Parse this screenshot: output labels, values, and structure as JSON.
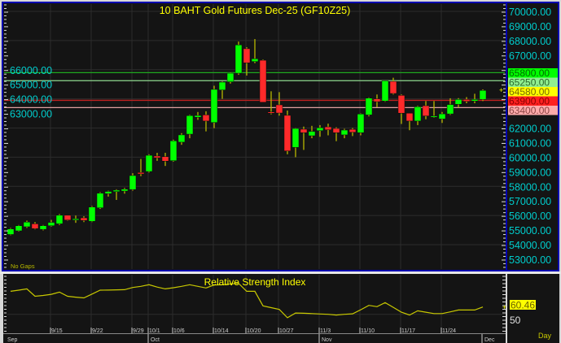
{
  "chart_data": {
    "type": "candlestick",
    "title": "10  BAHT  Gold  Futures  Dec-25  (GF10Z25)",
    "note": "No  Gaps",
    "period": "Day",
    "ylim": [
      52500,
      70500
    ],
    "y_ticks": [
      "70000.00",
      "69000.00",
      "68000.00",
      "67000.00",
      "66000.00",
      "65000.00",
      "64000.00",
      "63000.00",
      "62000.00",
      "61000.00",
      "60000.00",
      "59000.00",
      "58000.00",
      "57000.00",
      "56000.00",
      "55000.00",
      "54000.00",
      "53000.00"
    ],
    "y_tick_values": [
      70000,
      69000,
      68000,
      67000,
      66000,
      65000,
      64000,
      63000,
      62000,
      61000,
      60000,
      59000,
      58000,
      57000,
      56000,
      55000,
      54000,
      53000
    ],
    "grid_every": 2000,
    "levels": [
      {
        "value": 65800,
        "label": "65800.00",
        "line": "#1fa81f",
        "bg": "#00ff00",
        "fg": "#006a00"
      },
      {
        "value": 65250,
        "label": "65250.00",
        "line": "#8fd88f",
        "bg": "#90ee90",
        "fg": "#2d6b2d"
      },
      {
        "value": 63900,
        "label": "63900.00",
        "line": "#c02020",
        "bg": "#ff2020",
        "fg": "#8a0000"
      },
      {
        "value": 63400,
        "label": "63400.00",
        "line": "#e0a0a0",
        "bg": "#ffaaaa",
        "fg": "#8a4545"
      }
    ],
    "last_price": {
      "value": 64580,
      "label": "64580.00",
      "bg": "#ffff00",
      "fg": "#7a6a00"
    },
    "colors": {
      "up": "#00ff00",
      "down": "#ff2a2a",
      "wick": "#b8b800",
      "title": "#ffff00",
      "axis_text": "#00cccc",
      "background": "#141414",
      "grid": "#2c2c2c",
      "frame": "#0000b0"
    },
    "candles": [
      [
        54700,
        55150,
        54650,
        55080
      ],
      [
        54950,
        55350,
        54900,
        55300
      ],
      [
        55230,
        55650,
        55150,
        55550
      ],
      [
        55430,
        55550,
        55050,
        55100
      ],
      [
        55050,
        55350,
        54980,
        55300
      ],
      [
        55300,
        55700,
        55250,
        55530
      ],
      [
        55430,
        56100,
        55350,
        56020
      ],
      [
        56020,
        56020,
        55650,
        55690
      ],
      [
        55690,
        56000,
        55500,
        55780
      ],
      [
        55840,
        55950,
        55550,
        55660
      ],
      [
        55600,
        56650,
        55550,
        56580
      ],
      [
        56530,
        57600,
        56450,
        57530
      ],
      [
        57500,
        57700,
        57300,
        57650
      ],
      [
        57640,
        57800,
        57070,
        57740
      ],
      [
        57680,
        57900,
        57500,
        57810
      ],
      [
        57780,
        58900,
        57700,
        58740
      ],
      [
        58950,
        59880,
        58700,
        58850
      ],
      [
        59020,
        60200,
        58950,
        60130
      ],
      [
        60080,
        60300,
        59750,
        59960
      ],
      [
        60040,
        60300,
        59400,
        59730
      ],
      [
        59760,
        61200,
        59700,
        61120
      ],
      [
        61030,
        61650,
        60850,
        61530
      ],
      [
        61580,
        62900,
        61300,
        62850
      ],
      [
        62740,
        63100,
        62560,
        62860
      ],
      [
        62900,
        63150,
        61770,
        62480
      ],
      [
        62380,
        64900,
        61990,
        64650
      ],
      [
        64610,
        65200,
        64000,
        65150
      ],
      [
        65170,
        65800,
        65050,
        65760
      ],
      [
        65760,
        67930,
        65650,
        67700
      ],
      [
        67440,
        67540,
        65600,
        66470
      ],
      [
        66560,
        68100,
        66450,
        66750
      ],
      [
        66650,
        66700,
        63770,
        63770
      ],
      [
        63100,
        64520,
        62940,
        63050
      ],
      [
        63590,
        64460,
        62850,
        63030
      ],
      [
        62870,
        63200,
        60200,
        60430
      ],
      [
        60670,
        62000,
        60000,
        61970
      ],
      [
        61920,
        62100,
        60500,
        61680
      ],
      [
        61470,
        62150,
        61300,
        61770
      ],
      [
        61820,
        62200,
        61400,
        62020
      ],
      [
        62080,
        62300,
        61500,
        61880
      ],
      [
        61970,
        62050,
        61100,
        61680
      ],
      [
        61530,
        61950,
        61300,
        61860
      ],
      [
        61910,
        62000,
        61450,
        61710
      ],
      [
        61680,
        63000,
        61500,
        62960
      ],
      [
        62900,
        64100,
        62800,
        64050
      ],
      [
        64000,
        64300,
        63420,
        63810
      ],
      [
        63850,
        65250,
        63800,
        65240
      ],
      [
        65200,
        65450,
        64300,
        64370
      ],
      [
        64240,
        64300,
        62280,
        63020
      ],
      [
        63020,
        63030,
        61850,
        62480
      ],
      [
        62480,
        63520,
        62200,
        63460
      ],
      [
        63530,
        63850,
        62600,
        62830
      ],
      [
        62780,
        63850,
        62700,
        62830
      ],
      [
        62620,
        63100,
        62350,
        62970
      ],
      [
        62970,
        64040,
        62900,
        63610
      ],
      [
        63630,
        64050,
        63400,
        63960
      ],
      [
        63960,
        64120,
        63700,
        63830
      ],
      [
        63850,
        64350,
        63700,
        63960
      ],
      [
        63960,
        64650,
        63850,
        64580
      ]
    ],
    "rsi": {
      "title": "Relative  Strength  Index",
      "value_label": "60.46",
      "ref_label": "50",
      "line_color": "#c8c800",
      "values": [
        82.9,
        84.5,
        86.4,
        75.8,
        77,
        78.6,
        81.7,
        75.8,
        74.5,
        73.5,
        79,
        84.5,
        84.7,
        85,
        85.2,
        88.4,
        90,
        92.3,
        89,
        86.4,
        88,
        90,
        92.3,
        90,
        87.7,
        92,
        92.3,
        93.5,
        94.3,
        82.9,
        82.9,
        62.1,
        59.5,
        57,
        45.1,
        51.9,
        51.5,
        51,
        50.5,
        50,
        49,
        50,
        50.7,
        56.5,
        62.8,
        60.9,
        66.7,
        60,
        53,
        49,
        55,
        53,
        51,
        51,
        53.5,
        56.2,
        56.2,
        56.2,
        60.46
      ]
    },
    "x_axis": {
      "day_labels": [
        {
          "label": "9/15",
          "index": 5
        },
        {
          "label": "9/22",
          "index": 10
        },
        {
          "label": "9/29",
          "index": 15
        },
        {
          "label": "10/1",
          "index": 17
        },
        {
          "label": "10/6",
          "index": 20
        },
        {
          "label": "10/14",
          "index": 25
        },
        {
          "label": "10/20",
          "index": 29
        },
        {
          "label": "10/27",
          "index": 33
        },
        {
          "label": "11/3",
          "index": 38
        },
        {
          "label": "11/10",
          "index": 43
        },
        {
          "label": "11/17",
          "index": 48
        },
        {
          "label": "11/24",
          "index": 53
        }
      ],
      "month_labels": [
        {
          "label": "Sep",
          "index": 0
        },
        {
          "label": "Oct",
          "index": 17
        },
        {
          "label": "Nov",
          "index": 38
        },
        {
          "label": "Dec",
          "index": 58
        }
      ]
    }
  }
}
